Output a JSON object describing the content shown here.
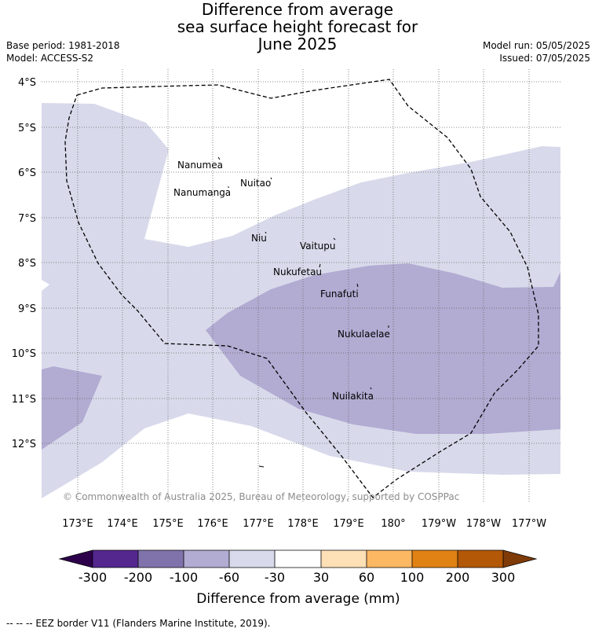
{
  "title": {
    "line1": "Difference from average",
    "line2": "sea surface height forecast for",
    "line3": "June 2025"
  },
  "meta": {
    "base_period": "Base period: 1981-2018",
    "model": "Model: ACCESS-S2",
    "model_run": "Model run: 05/05/2025",
    "issued": "Issued: 07/05/2025"
  },
  "map": {
    "lat_labels": [
      "4°S",
      "5°S",
      "6°S",
      "7°S",
      "8°S",
      "9°S",
      "10°S",
      "11°S",
      "12°S"
    ],
    "lon_labels": [
      "173°E",
      "174°E",
      "175°E",
      "176°E",
      "177°E",
      "178°E",
      "179°E",
      "180°",
      "179°W",
      "178°W",
      "177°W"
    ],
    "places": [
      "Nanumea",
      "Nuitao",
      "Nanumanga",
      "Niu",
      "Vaitupu",
      "Nukufetau",
      "Funafuti",
      "Nukulaelae",
      "Nuilakita"
    ],
    "credit": "© Commonwealth of Australia 2025, Bureau of Meteorology, supported by COSPPac",
    "colors": {
      "minus_300_200": "#54278f",
      "minus_200_100": "#8073ac",
      "minus_100_60": "#b2abd2",
      "minus_60_30": "#d8daeb",
      "neutral": "#ffffff",
      "plus_30_60": "#fee0b6",
      "plus_60_100": "#fdb863",
      "plus_100_200": "#e08214",
      "plus_200_300": "#b35806",
      "under": "#2d004b",
      "over": "#7f3b08"
    }
  },
  "colorbar": {
    "ticks": [
      "-300",
      "-200",
      "-100",
      "-60",
      "-30",
      "30",
      "60",
      "100",
      "200",
      "300"
    ],
    "title": "Difference from average (mm)"
  },
  "footnote": "--  --  -- EEZ border V11 (Flanders Marine Institute, 2019)."
}
